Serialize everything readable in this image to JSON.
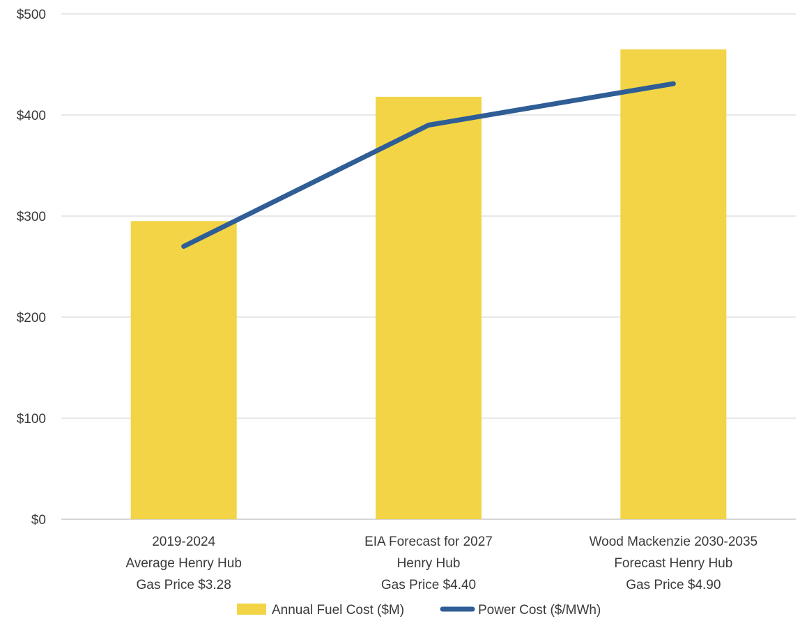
{
  "chart_data": {
    "type": "bar",
    "title": "",
    "xlabel": "",
    "ylabel": "",
    "ylim": [
      0,
      500
    ],
    "yticks": [
      "$0",
      "$100",
      "$200",
      "$300",
      "$400",
      "$500"
    ],
    "grid": true,
    "legend_position": "bottom",
    "categories": [
      [
        "2019-2024",
        "Average Henry Hub",
        "Gas Price $3.28"
      ],
      [
        "EIA Forecast for 2027",
        "Henry Hub",
        "Gas Price $4.40"
      ],
      [
        "Wood Mackenzie 2030-2035",
        "Forecast Henry Hub",
        "Gas Price $4.90"
      ]
    ],
    "series": [
      {
        "name": "Annual Fuel Cost ($M)",
        "kind": "bar",
        "color": "#F2D446",
        "values": [
          295,
          418,
          465
        ]
      },
      {
        "name": "Power Cost ($/MWh)",
        "kind": "line",
        "color": "#2F5D95",
        "values": [
          270,
          390,
          431
        ]
      }
    ]
  }
}
